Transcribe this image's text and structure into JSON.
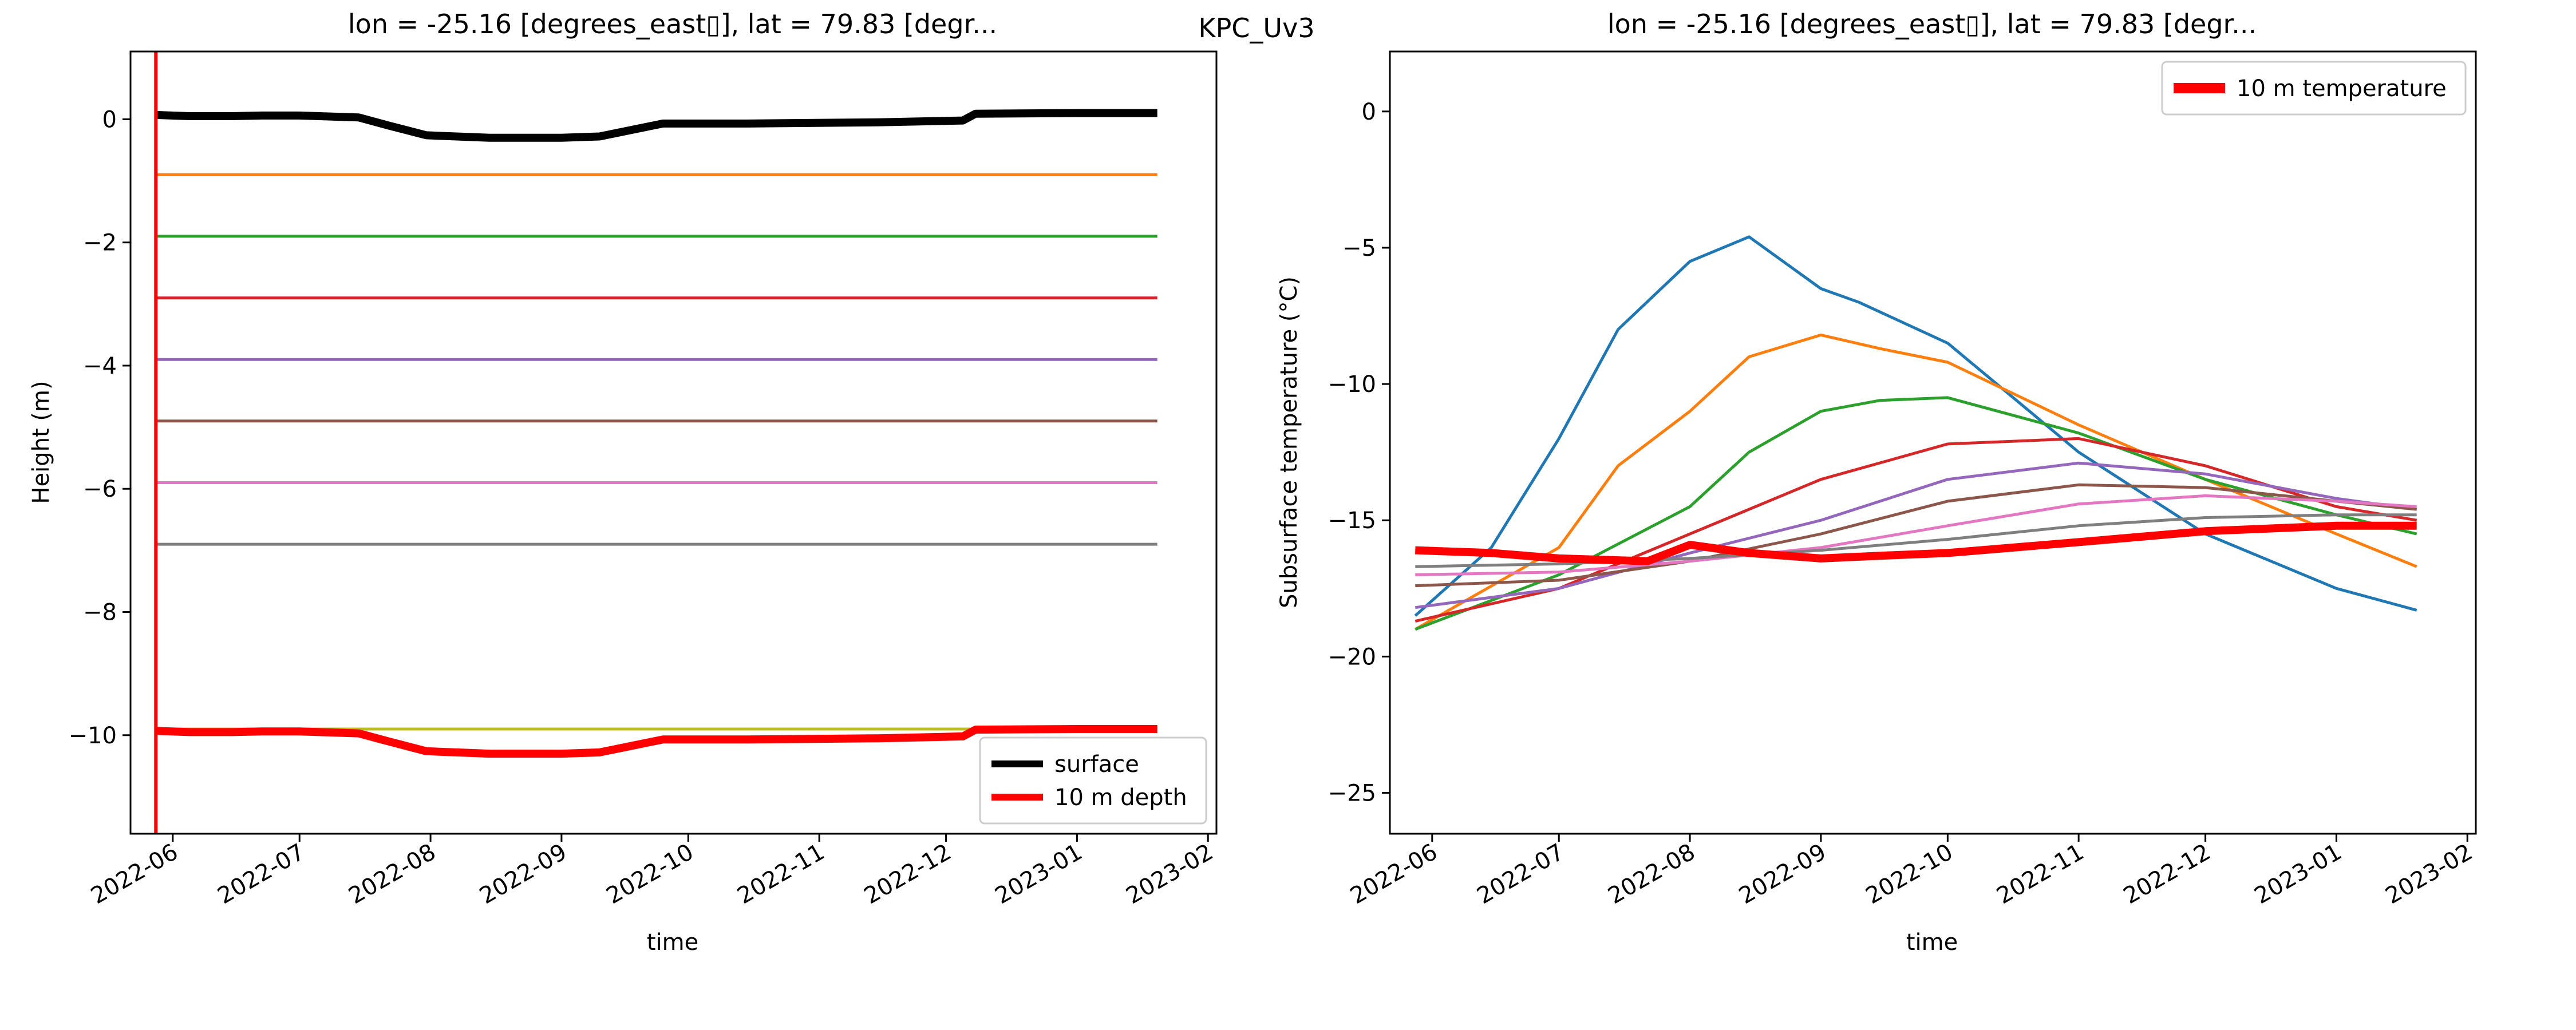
{
  "figure": {
    "suptitle": "KPC_Uv3"
  },
  "chart_data": [
    {
      "type": "line",
      "title": "lon = -25.16 [degrees_east▯], lat = 79.83 [degr...",
      "xlabel": "time",
      "ylabel": "Height (m)",
      "x_ticks": [
        "2022-06",
        "2022-07",
        "2022-08",
        "2022-09",
        "2022-10",
        "2022-11",
        "2022-12",
        "2023-01",
        "2023-02"
      ],
      "y_ticks": [
        0,
        -2,
        -4,
        -6,
        -8,
        -10
      ],
      "xlim": [
        "2022-05-22",
        "2023-02-03"
      ],
      "ylim": [
        -11.6,
        1.1
      ],
      "legend": {
        "placement": "lower-right",
        "entries": [
          "surface",
          "10 m depth"
        ]
      },
      "vline": {
        "x": "2022-05-28",
        "color": "#ff0000"
      },
      "series": [
        {
          "name": "surface",
          "color": "#000000",
          "role": "thick",
          "x": [
            "2022-05-28",
            "2022-06-05",
            "2022-06-15",
            "2022-06-22",
            "2022-07-01",
            "2022-07-15",
            "2022-07-22",
            "2022-07-31",
            "2022-08-15",
            "2022-09-01",
            "2022-09-10",
            "2022-09-25",
            "2022-10-15",
            "2022-11-15",
            "2022-12-05",
            "2022-12-08",
            "2023-01-01",
            "2023-01-20"
          ],
          "y": [
            0.07,
            0.05,
            0.05,
            0.06,
            0.06,
            0.03,
            -0.1,
            -0.26,
            -0.3,
            -0.3,
            -0.28,
            -0.07,
            -0.07,
            -0.05,
            -0.02,
            0.09,
            0.1,
            0.1
          ]
        },
        {
          "color": "#ff7f0e",
          "x": [
            "2022-05-28",
            "2023-01-20"
          ],
          "y": [
            -0.9,
            -0.9
          ]
        },
        {
          "color": "#2ca02c",
          "x": [
            "2022-05-28",
            "2023-01-20"
          ],
          "y": [
            -1.9,
            -1.9
          ]
        },
        {
          "color": "#d62728",
          "x": [
            "2022-05-28",
            "2023-01-20"
          ],
          "y": [
            -2.9,
            -2.9
          ]
        },
        {
          "color": "#9467bd",
          "x": [
            "2022-05-28",
            "2023-01-20"
          ],
          "y": [
            -3.9,
            -3.9
          ]
        },
        {
          "color": "#8c564b",
          "x": [
            "2022-05-28",
            "2023-01-20"
          ],
          "y": [
            -4.9,
            -4.9
          ]
        },
        {
          "color": "#e377c2",
          "x": [
            "2022-05-28",
            "2023-01-20"
          ],
          "y": [
            -5.9,
            -5.9
          ]
        },
        {
          "color": "#7f7f7f",
          "x": [
            "2022-05-28",
            "2023-01-20"
          ],
          "y": [
            -6.9,
            -6.9
          ]
        },
        {
          "color": "#bcbd22",
          "x": [
            "2022-05-28",
            "2023-01-20"
          ],
          "y": [
            -9.9,
            -9.9
          ]
        },
        {
          "name": "10 m depth",
          "color": "#ff0000",
          "role": "thick",
          "x": [
            "2022-05-28",
            "2022-06-05",
            "2022-06-15",
            "2022-06-22",
            "2022-07-01",
            "2022-07-15",
            "2022-07-22",
            "2022-07-31",
            "2022-08-15",
            "2022-09-01",
            "2022-09-10",
            "2022-09-25",
            "2022-10-15",
            "2022-11-15",
            "2022-12-05",
            "2022-12-08",
            "2023-01-01",
            "2023-01-20"
          ],
          "y": [
            -9.93,
            -9.95,
            -9.95,
            -9.94,
            -9.94,
            -9.97,
            -10.1,
            -10.26,
            -10.3,
            -10.3,
            -10.28,
            -10.07,
            -10.07,
            -10.05,
            -10.02,
            -9.91,
            -9.9,
            -9.9
          ]
        }
      ]
    },
    {
      "type": "line",
      "title": "lon = -25.16 [degrees_east▯], lat = 79.83 [degr...",
      "xlabel": "time",
      "ylabel": "Subsurface temperature (°C)",
      "x_ticks": [
        "2022-06",
        "2022-07",
        "2022-08",
        "2022-09",
        "2022-10",
        "2022-11",
        "2022-12",
        "2023-01",
        "2023-02"
      ],
      "y_ticks": [
        0,
        -5,
        -10,
        -15,
        -20,
        -25
      ],
      "xlim": [
        "2022-05-22",
        "2023-02-03"
      ],
      "ylim": [
        -26.5,
        2.2
      ],
      "legend": {
        "placement": "top-right",
        "entries": [
          "10 m temperature"
        ]
      },
      "series": [
        {
          "color": "#1f77b4",
          "x": [
            "2022-05-28",
            "2022-06-15",
            "2022-07-01",
            "2022-07-15",
            "2022-08-01",
            "2022-08-15",
            "2022-09-01",
            "2022-09-10",
            "2022-10-01",
            "2022-11-01",
            "2022-12-01",
            "2023-01-01",
            "2023-01-20"
          ],
          "y": [
            -18.5,
            -16,
            -12,
            -8,
            -5.5,
            -4.6,
            -6.5,
            -7,
            -8.5,
            -12.5,
            -15.5,
            -17.5,
            -18.3
          ]
        },
        {
          "color": "#ff7f0e",
          "x": [
            "2022-05-28",
            "2022-07-01",
            "2022-07-15",
            "2022-08-01",
            "2022-08-15",
            "2022-09-01",
            "2022-09-15",
            "2022-10-01",
            "2022-11-01",
            "2022-12-01",
            "2023-01-01",
            "2023-01-20"
          ],
          "y": [
            -19,
            -16,
            -13,
            -11,
            -9,
            -8.2,
            -8.7,
            -9.2,
            -11.5,
            -13.5,
            -15.5,
            -16.7
          ]
        },
        {
          "color": "#2ca02c",
          "x": [
            "2022-05-28",
            "2022-07-01",
            "2022-08-01",
            "2022-08-15",
            "2022-09-01",
            "2022-09-15",
            "2022-10-01",
            "2022-11-01",
            "2022-12-01",
            "2023-01-01",
            "2023-01-20"
          ],
          "y": [
            -19,
            -17,
            -14.5,
            -12.5,
            -11,
            -10.6,
            -10.5,
            -11.8,
            -13.5,
            -14.8,
            -15.5
          ]
        },
        {
          "color": "#d62728",
          "x": [
            "2022-05-28",
            "2022-07-01",
            "2022-08-01",
            "2022-09-01",
            "2022-10-01",
            "2022-11-01",
            "2022-12-01",
            "2023-01-01",
            "2023-01-20"
          ],
          "y": [
            -18.7,
            -17.5,
            -15.5,
            -13.5,
            -12.2,
            -12,
            -13,
            -14.5,
            -15
          ]
        },
        {
          "color": "#9467bd",
          "x": [
            "2022-05-28",
            "2022-07-01",
            "2022-08-01",
            "2022-09-01",
            "2022-10-01",
            "2022-11-01",
            "2022-12-01",
            "2023-01-01",
            "2023-01-20"
          ],
          "y": [
            -18.2,
            -17.5,
            -16.2,
            -15,
            -13.5,
            -12.9,
            -13.3,
            -14.2,
            -14.6
          ]
        },
        {
          "color": "#8c564b",
          "x": [
            "2022-05-28",
            "2022-07-01",
            "2022-08-01",
            "2022-09-01",
            "2022-10-01",
            "2022-11-01",
            "2022-12-01",
            "2023-01-01",
            "2023-01-20"
          ],
          "y": [
            -17.4,
            -17.2,
            -16.5,
            -15.5,
            -14.3,
            -13.7,
            -13.8,
            -14.3,
            -14.6
          ]
        },
        {
          "color": "#e377c2",
          "x": [
            "2022-05-28",
            "2022-07-01",
            "2022-08-01",
            "2022-09-01",
            "2022-10-01",
            "2022-11-01",
            "2022-12-01",
            "2023-01-01",
            "2023-01-20"
          ],
          "y": [
            -17,
            -16.9,
            -16.5,
            -16,
            -15.2,
            -14.4,
            -14.1,
            -14.3,
            -14.5
          ]
        },
        {
          "color": "#7f7f7f",
          "x": [
            "2022-05-28",
            "2022-07-01",
            "2022-08-01",
            "2022-09-01",
            "2022-10-01",
            "2022-11-01",
            "2022-12-01",
            "2023-01-01",
            "2023-01-20"
          ],
          "y": [
            -16.7,
            -16.6,
            -16.4,
            -16.1,
            -15.7,
            -15.2,
            -14.9,
            -14.8,
            -14.8
          ]
        },
        {
          "name": "10 m temperature",
          "color": "#ff0000",
          "role": "thick",
          "x": [
            "2022-05-28",
            "2022-06-15",
            "2022-07-01",
            "2022-07-22",
            "2022-08-01",
            "2022-08-15",
            "2022-09-01",
            "2022-09-15",
            "2022-10-01",
            "2022-11-01",
            "2022-12-01",
            "2023-01-01",
            "2023-01-20"
          ],
          "y": [
            -16.1,
            -16.2,
            -16.4,
            -16.5,
            -15.9,
            -16.2,
            -16.4,
            -16.3,
            -16.2,
            -15.8,
            -15.4,
            -15.2,
            -15.2
          ]
        }
      ]
    }
  ]
}
